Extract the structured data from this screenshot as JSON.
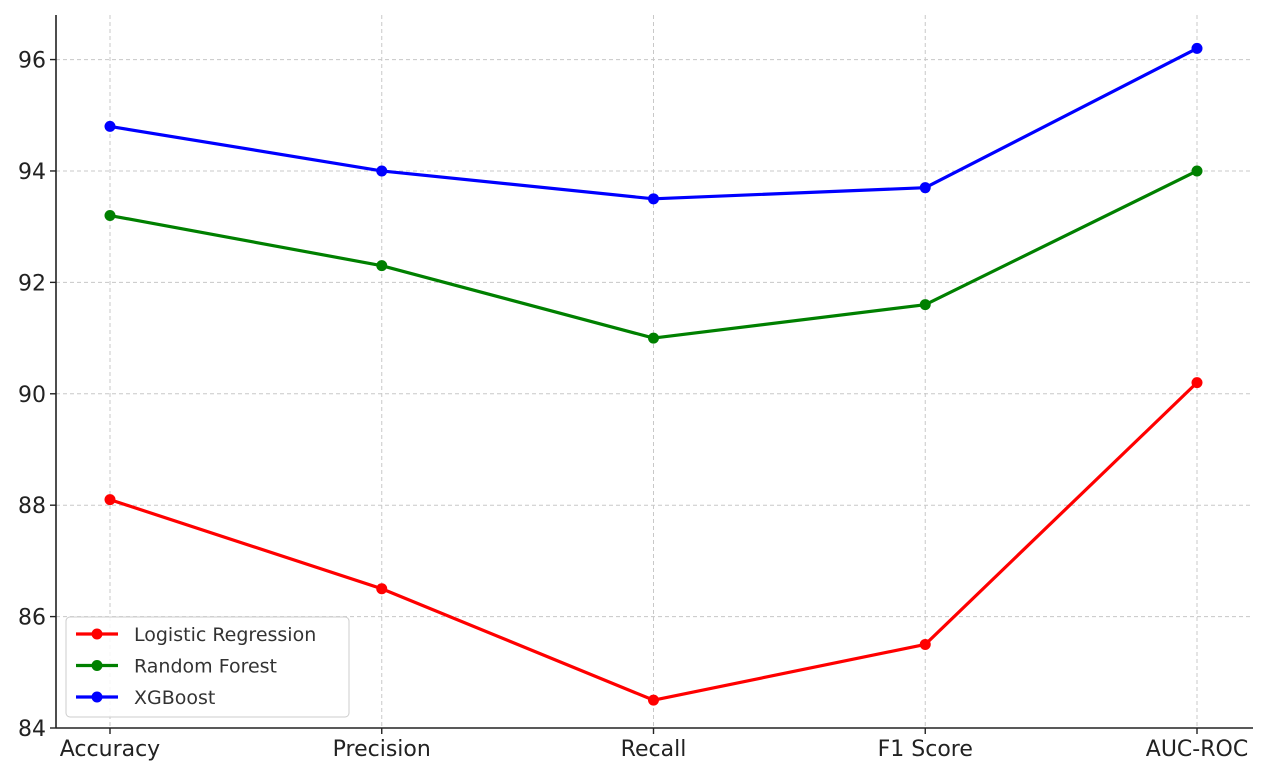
{
  "chart_data": {
    "type": "line",
    "title": "",
    "xlabel": "",
    "ylabel": "",
    "categories": [
      "Accuracy",
      "Precision",
      "Recall",
      "F1 Score",
      "AUC-ROC"
    ],
    "ylim": [
      84,
      96.8
    ],
    "yticks": [
      84,
      86,
      88,
      90,
      92,
      94,
      96
    ],
    "grid": true,
    "legend_position": "bottom-left",
    "series": [
      {
        "name": "Logistic Regression",
        "color": "#ff0000",
        "values": [
          88.1,
          86.5,
          84.5,
          85.5,
          90.2
        ]
      },
      {
        "name": "Random Forest",
        "color": "#008000",
        "values": [
          93.2,
          92.3,
          91.0,
          91.6,
          94.0
        ]
      },
      {
        "name": "XGBoost",
        "color": "#0000ff",
        "values": [
          94.8,
          94.0,
          93.5,
          93.7,
          96.2
        ]
      }
    ]
  }
}
